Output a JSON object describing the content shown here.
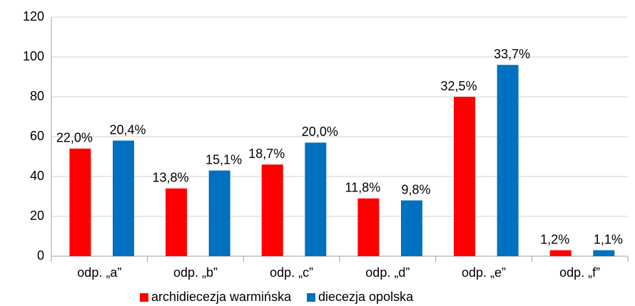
{
  "chart_data": {
    "type": "bar",
    "categories": [
      "odp. „a”",
      "odp. „b”",
      "odp. „c”",
      "odp. „d”",
      "odp. „e”",
      "odp. „f”"
    ],
    "series": [
      {
        "name": "archidiecezja warmińska",
        "color": "#ff0000",
        "values": [
          54,
          34,
          46,
          29,
          80,
          3
        ],
        "percent_labels": [
          "22,0%",
          "13,8%",
          "18,7%",
          "11,8%",
          "32,5%",
          "1,2%"
        ]
      },
      {
        "name": "diecezja opolska",
        "color": "#0070c0",
        "values": [
          58,
          43,
          57,
          28,
          96,
          3
        ],
        "percent_labels": [
          "20,4%",
          "15,1%",
          "20,0%",
          "9,8%",
          "33,7%",
          "1,1%"
        ]
      }
    ],
    "ylim": [
      0,
      120
    ],
    "yticks": [
      0,
      20,
      40,
      60,
      80,
      100,
      120
    ],
    "grid": true,
    "legend": "bottom"
  }
}
